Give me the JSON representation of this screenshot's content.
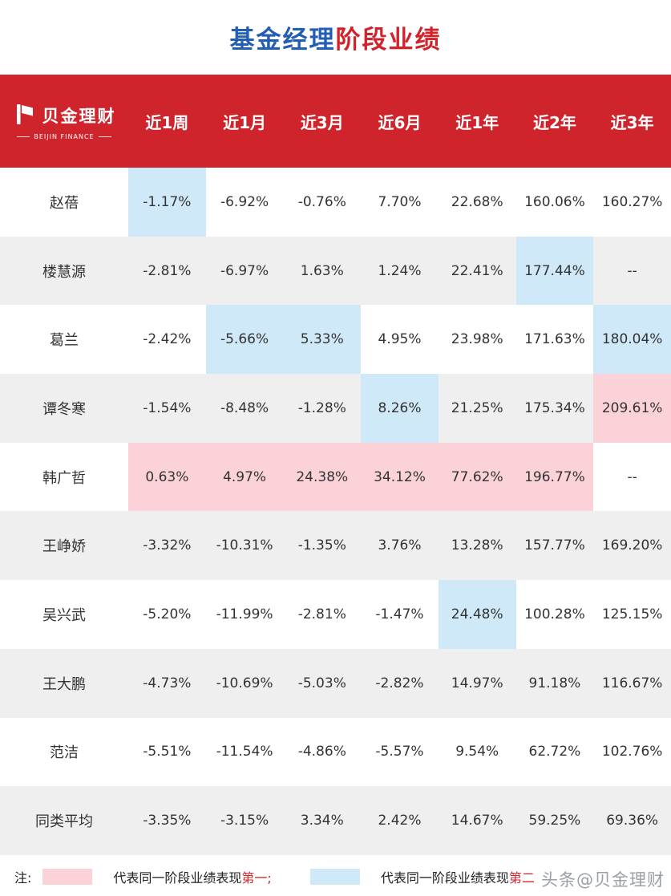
{
  "title": {
    "part_blue": "基金经理",
    "part_red": "阶段业绩"
  },
  "brand": {
    "name": "贝金理财",
    "subtitle": "BEIJIN FINANCE"
  },
  "chart_data": {
    "type": "table",
    "title": "基金经理阶段业绩",
    "columns": [
      "近1周",
      "近1月",
      "近3月",
      "近6月",
      "近1年",
      "近2年",
      "近3年"
    ],
    "rows": [
      {
        "name": "赵蓓",
        "values": [
          "-1.17%",
          "-6.92%",
          "-0.76%",
          "7.70%",
          "22.68%",
          "160.06%",
          "160.27%"
        ],
        "highlights": [
          "blue",
          null,
          null,
          null,
          null,
          null,
          null
        ]
      },
      {
        "name": "楼慧源",
        "values": [
          "-2.81%",
          "-6.97%",
          "1.63%",
          "1.24%",
          "22.41%",
          "177.44%",
          "--"
        ],
        "highlights": [
          null,
          null,
          null,
          null,
          null,
          "blue",
          null
        ]
      },
      {
        "name": "葛兰",
        "values": [
          "-2.42%",
          "-5.66%",
          "5.33%",
          "4.95%",
          "23.98%",
          "171.63%",
          "180.04%"
        ],
        "highlights": [
          null,
          "blue",
          "blue",
          null,
          null,
          null,
          "blue"
        ]
      },
      {
        "name": "谭冬寒",
        "values": [
          "-1.54%",
          "-8.48%",
          "-1.28%",
          "8.26%",
          "21.25%",
          "175.34%",
          "209.61%"
        ],
        "highlights": [
          null,
          null,
          null,
          "blue",
          null,
          null,
          "pink"
        ]
      },
      {
        "name": "韩广哲",
        "values": [
          "0.63%",
          "4.97%",
          "24.38%",
          "34.12%",
          "77.62%",
          "196.77%",
          "--"
        ],
        "highlights": [
          "pink",
          "pink",
          "pink",
          "pink",
          "pink",
          "pink",
          null
        ]
      },
      {
        "name": "王峥娇",
        "values": [
          "-3.32%",
          "-10.31%",
          "-1.35%",
          "3.76%",
          "13.28%",
          "157.77%",
          "169.20%"
        ],
        "highlights": [
          null,
          null,
          null,
          null,
          null,
          null,
          null
        ]
      },
      {
        "name": "吴兴武",
        "values": [
          "-5.20%",
          "-11.99%",
          "-2.81%",
          "-1.47%",
          "24.48%",
          "100.28%",
          "125.15%"
        ],
        "highlights": [
          null,
          null,
          null,
          null,
          "blue",
          null,
          null
        ]
      },
      {
        "name": "王大鹏",
        "values": [
          "-4.73%",
          "-10.69%",
          "-5.03%",
          "-2.82%",
          "14.97%",
          "91.18%",
          "116.67%"
        ],
        "highlights": [
          null,
          null,
          null,
          null,
          null,
          null,
          null
        ]
      },
      {
        "name": "范洁",
        "values": [
          "-5.51%",
          "-11.54%",
          "-4.86%",
          "-5.57%",
          "9.54%",
          "62.72%",
          "102.76%"
        ],
        "highlights": [
          null,
          null,
          null,
          null,
          null,
          null,
          null
        ]
      },
      {
        "name": "同类平均",
        "values": [
          "-3.35%",
          "-3.15%",
          "3.34%",
          "2.42%",
          "14.67%",
          "59.25%",
          "69.36%"
        ],
        "highlights": [
          null,
          null,
          null,
          null,
          null,
          null,
          null
        ]
      }
    ],
    "highlight_meaning": {
      "pink": "同一阶段业绩表现第一",
      "blue": "同一阶段业绩表现第二"
    }
  },
  "legend": {
    "note": "注:",
    "first": {
      "prefix": "代表同一阶段业绩表现",
      "em": "第一;"
    },
    "second": {
      "prefix": "代表同一阶段业绩表现",
      "em": "第二"
    }
  },
  "watermark": "头条@贝金理财",
  "colors": {
    "header_red": "#d0242c",
    "title_blue": "#235eb5",
    "highlight_pink": "#fad2d7",
    "highlight_blue": "#cfe9f8",
    "row_alt_gray": "#efefef"
  }
}
